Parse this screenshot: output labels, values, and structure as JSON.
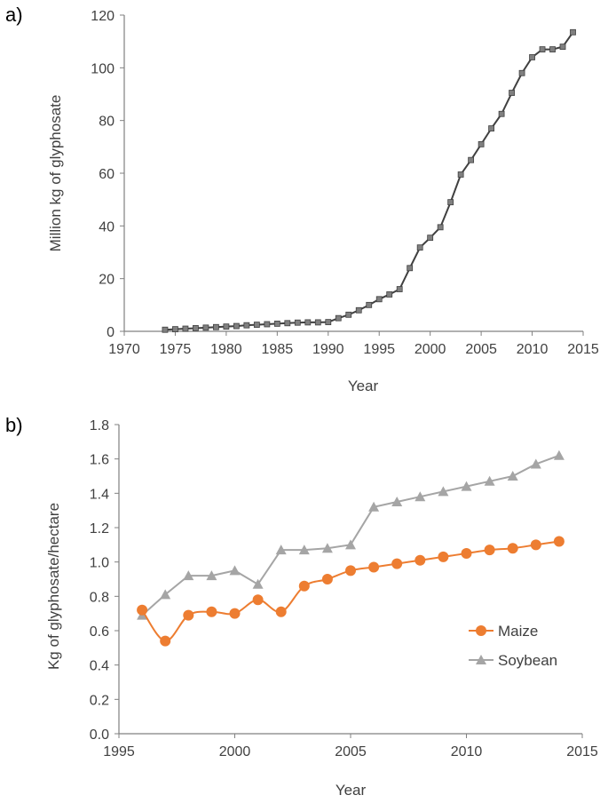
{
  "chart_data": [
    {
      "type": "line",
      "panel_label": "a)",
      "title": "",
      "xlabel": "Year",
      "ylabel": "Million kg of glyphosate",
      "xlim": [
        1970,
        2015
      ],
      "ylim": [
        0,
        120
      ],
      "xticks": [
        1970,
        1975,
        1980,
        1985,
        1990,
        1995,
        2000,
        2005,
        2010,
        2015
      ],
      "yticks": [
        0,
        20,
        40,
        60,
        80,
        100,
        120
      ],
      "grid": false,
      "legend": "none",
      "series": [
        {
          "color": "#404040",
          "marker": "square",
          "marker_color": "#808080",
          "x": [
            1974,
            1975,
            1976,
            1977,
            1978,
            1979,
            1980,
            1981,
            1982,
            1983,
            1984,
            1985,
            1986,
            1987,
            1988,
            1989,
            1990,
            1991,
            1992,
            1993,
            1994,
            1995,
            1996,
            1997,
            1998,
            1999,
            2000,
            2001,
            2002,
            2003,
            2004,
            2005,
            2006,
            2007,
            2008,
            2009,
            2010,
            2011,
            2012,
            2013,
            2014
          ],
          "y": [
            0.6,
            0.8,
            1.0,
            1.2,
            1.4,
            1.6,
            1.8,
            2.0,
            2.3,
            2.5,
            2.7,
            2.9,
            3.1,
            3.3,
            3.4,
            3.4,
            3.5,
            5.0,
            6.3,
            8.0,
            10.0,
            12.2,
            14.0,
            16.0,
            24.0,
            31.8,
            35.5,
            39.5,
            49.0,
            59.5,
            65.0,
            71.0,
            77.0,
            82.5,
            90.5,
            98.0,
            104.0,
            107.0,
            107.0,
            108.0,
            113.5
          ]
        }
      ]
    },
    {
      "type": "line",
      "panel_label": "b)",
      "title": "",
      "xlabel": "Year",
      "ylabel": "Kg of glyphosate/hectare",
      "xlim": [
        1995,
        2015
      ],
      "ylim": [
        0,
        1.8
      ],
      "xticks": [
        1995,
        2000,
        2005,
        2010,
        2015
      ],
      "yticks": [
        "0.0",
        "0.2",
        "0.4",
        "0.6",
        "0.8",
        "1.0",
        "1.2",
        "1.4",
        "1.6",
        "1.8"
      ],
      "grid": false,
      "legend": "right",
      "series": [
        {
          "name": "Maize",
          "color": "#ED7D31",
          "marker": "circle",
          "smooth": true,
          "x": [
            1996,
            1997,
            1998,
            1999,
            2000,
            2001,
            2002,
            2003,
            2004,
            2005,
            2006,
            2007,
            2008,
            2009,
            2010,
            2011,
            2012,
            2013,
            2014
          ],
          "y": [
            0.72,
            0.54,
            0.69,
            0.71,
            0.7,
            0.78,
            0.71,
            0.86,
            0.9,
            0.95,
            0.97,
            0.99,
            1.01,
            1.03,
            1.05,
            1.07,
            1.08,
            1.1,
            1.12
          ]
        },
        {
          "name": "Soybean",
          "color": "#A5A5A5",
          "marker": "triangle",
          "smooth": false,
          "x": [
            1996,
            1997,
            1998,
            1999,
            2000,
            2001,
            2002,
            2003,
            2004,
            2005,
            2006,
            2007,
            2008,
            2009,
            2010,
            2011,
            2012,
            2013,
            2014
          ],
          "y": [
            0.69,
            0.81,
            0.92,
            0.92,
            0.95,
            0.87,
            1.07,
            1.07,
            1.08,
            1.1,
            1.32,
            1.35,
            1.38,
            1.41,
            1.44,
            1.47,
            1.5,
            1.57,
            1.62
          ]
        }
      ]
    }
  ]
}
